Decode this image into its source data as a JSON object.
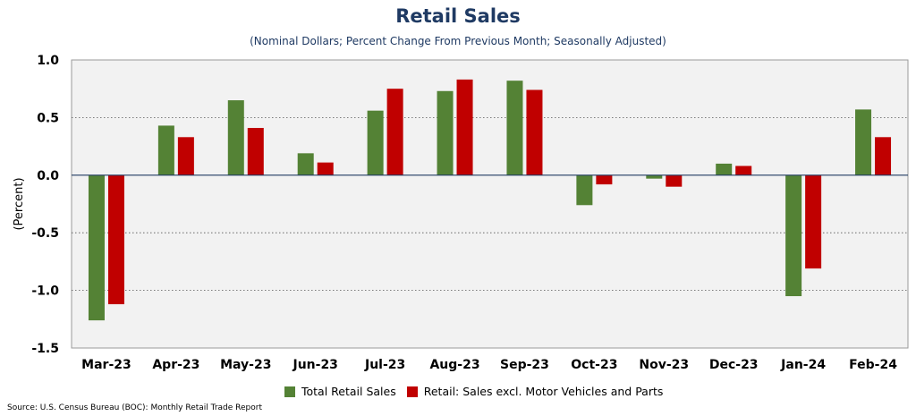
{
  "chart_data": {
    "type": "bar",
    "title": "Retail Sales",
    "subtitle": "(Nominal Dollars; Percent Change From Previous Month; Seasonally Adjusted)",
    "ylabel": "(Percent)",
    "xlabel": "",
    "ylim": [
      -1.5,
      1.0
    ],
    "yticks": [
      1.0,
      0.5,
      0.0,
      -0.5,
      -1.0,
      -1.5
    ],
    "ytick_labels": [
      "1.0",
      "0.5",
      "0.0",
      "-0.5",
      "-1.0",
      "-1.5"
    ],
    "grid": true,
    "legend_position": "bottom",
    "categories": [
      "Mar-23",
      "Apr-23",
      "May-23",
      "Jun-23",
      "Jul-23",
      "Aug-23",
      "Sep-23",
      "Oct-23",
      "Nov-23",
      "Dec-23",
      "Jan-24",
      "Feb-24"
    ],
    "series": [
      {
        "name": "Total Retail Sales",
        "color": "#548235",
        "values": [
          -1.26,
          0.43,
          0.65,
          0.19,
          0.56,
          0.73,
          0.82,
          -0.26,
          -0.03,
          0.1,
          -1.05,
          0.57
        ]
      },
      {
        "name": "Retail: Sales excl. Motor Vehicles and Parts",
        "color": "#c00000",
        "values": [
          -1.12,
          0.33,
          0.41,
          0.11,
          0.75,
          0.83,
          0.74,
          -0.08,
          -0.1,
          0.08,
          -0.81,
          0.33
        ]
      }
    ]
  },
  "source": "Source: U.S. Census Bureau (BOC): Monthly Retail Trade Report",
  "colors": {
    "title": "#1f3a63",
    "plot_bg": "#f2f2f2"
  }
}
